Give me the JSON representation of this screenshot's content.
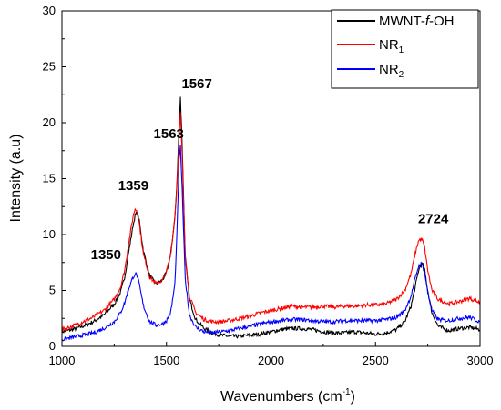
{
  "chart_data": {
    "type": "line",
    "xlabel": "Wavenumbers (cm",
    "xlabel_sup": "-1",
    "xlabel_end": ")",
    "ylabel": "Intensity (a.u)",
    "xlim": [
      1000,
      3000
    ],
    "ylim": [
      0,
      30
    ],
    "xticks": [
      1000,
      1500,
      2000,
      2500,
      3000
    ],
    "yticks": [
      0,
      5,
      10,
      15,
      20,
      25,
      30
    ],
    "grid": false,
    "legend_position": "top-right",
    "series": [
      {
        "name": "MWNT-f-OH",
        "name_parts": [
          "MWNT-",
          "f",
          "-OH"
        ],
        "color": "#000000",
        "x": [
          1000,
          1050,
          1100,
          1150,
          1200,
          1250,
          1280,
          1300,
          1320,
          1340,
          1350,
          1360,
          1370,
          1390,
          1420,
          1450,
          1480,
          1500,
          1520,
          1540,
          1550,
          1560,
          1567,
          1575,
          1590,
          1610,
          1640,
          1680,
          1720,
          1760,
          1800,
          1850,
          1900,
          1950,
          2000,
          2050,
          2100,
          2150,
          2200,
          2250,
          2300,
          2350,
          2400,
          2450,
          2500,
          2550,
          2600,
          2640,
          2670,
          2690,
          2705,
          2715,
          2724,
          2735,
          2750,
          2770,
          2800,
          2850,
          2900,
          2950,
          3000
        ],
        "y": [
          1.3,
          1.5,
          1.8,
          2.2,
          2.8,
          3.8,
          4.8,
          6.2,
          8.5,
          10.8,
          11.7,
          12.0,
          11.2,
          8.5,
          6.3,
          5.6,
          5.9,
          6.6,
          8.2,
          11.5,
          14.5,
          19.5,
          22.3,
          18.0,
          8.0,
          4.2,
          2.4,
          1.6,
          1.2,
          1.0,
          0.9,
          0.9,
          1.0,
          1.1,
          1.3,
          1.5,
          1.6,
          1.6,
          1.5,
          1.3,
          1.2,
          1.2,
          1.3,
          1.2,
          1.1,
          1.2,
          1.5,
          2.2,
          3.6,
          5.3,
          6.7,
          7.2,
          7.4,
          6.8,
          5.0,
          3.0,
          1.8,
          1.4,
          1.6,
          1.7,
          1.5
        ]
      },
      {
        "name": "NR",
        "name_sub": "1",
        "color": "#ff0000",
        "x": [
          1000,
          1050,
          1100,
          1150,
          1200,
          1250,
          1280,
          1300,
          1320,
          1340,
          1350,
          1360,
          1370,
          1390,
          1420,
          1450,
          1480,
          1500,
          1520,
          1540,
          1550,
          1560,
          1567,
          1575,
          1590,
          1610,
          1640,
          1680,
          1720,
          1760,
          1800,
          1850,
          1900,
          1950,
          2000,
          2050,
          2100,
          2150,
          2200,
          2250,
          2300,
          2350,
          2400,
          2450,
          2500,
          2550,
          2600,
          2640,
          2670,
          2690,
          2705,
          2715,
          2724,
          2735,
          2750,
          2770,
          2800,
          2850,
          2900,
          2950,
          3000
        ],
        "y": [
          1.5,
          1.8,
          2.2,
          2.6,
          3.2,
          4.2,
          5.3,
          6.8,
          9.3,
          11.6,
          12.3,
          12.1,
          11.0,
          8.2,
          6.2,
          5.6,
          5.9,
          6.7,
          8.2,
          11.5,
          14.3,
          18.5,
          20.8,
          17.0,
          8.0,
          4.5,
          3.0,
          2.4,
          2.2,
          2.2,
          2.3,
          2.5,
          2.7,
          3.0,
          3.2,
          3.4,
          3.6,
          3.5,
          3.5,
          3.6,
          3.5,
          3.6,
          3.6,
          3.7,
          3.7,
          3.8,
          4.2,
          5.0,
          6.5,
          8.3,
          9.4,
          9.6,
          9.5,
          8.8,
          6.8,
          5.0,
          4.2,
          3.8,
          4.0,
          4.3,
          3.9
        ]
      },
      {
        "name": "NR",
        "name_sub": "2",
        "color": "#0000ff",
        "x": [
          1000,
          1050,
          1100,
          1150,
          1200,
          1250,
          1280,
          1300,
          1320,
          1340,
          1350,
          1360,
          1370,
          1390,
          1420,
          1450,
          1480,
          1500,
          1520,
          1540,
          1550,
          1560,
          1567,
          1575,
          1590,
          1610,
          1640,
          1680,
          1720,
          1760,
          1800,
          1850,
          1900,
          1950,
          2000,
          2050,
          2100,
          2150,
          2200,
          2250,
          2300,
          2350,
          2400,
          2450,
          2500,
          2550,
          2600,
          2640,
          2670,
          2690,
          2705,
          2715,
          2724,
          2735,
          2750,
          2770,
          2800,
          2850,
          2900,
          2950,
          3000
        ],
        "y": [
          0.6,
          0.8,
          1.0,
          1.2,
          1.6,
          2.2,
          3.0,
          3.9,
          5.2,
          6.2,
          6.5,
          6.3,
          5.5,
          3.6,
          2.2,
          1.9,
          2.0,
          2.3,
          3.0,
          5.5,
          10.0,
          16.5,
          17.9,
          14.0,
          6.0,
          2.8,
          1.7,
          1.3,
          1.2,
          1.3,
          1.4,
          1.6,
          1.8,
          2.0,
          2.2,
          2.3,
          2.4,
          2.4,
          2.3,
          2.2,
          2.2,
          2.3,
          2.3,
          2.3,
          2.3,
          2.4,
          2.6,
          3.2,
          4.5,
          6.1,
          7.1,
          7.4,
          7.3,
          6.6,
          4.8,
          3.2,
          2.4,
          2.3,
          2.5,
          2.6,
          2.2
        ]
      }
    ],
    "annotations": [
      {
        "text": "1350",
        "x": 1350,
        "y": 7.8
      },
      {
        "text": "1359",
        "x": 1359,
        "y": 14.0
      },
      {
        "text": "1563",
        "x": 1563,
        "y": 18.6
      },
      {
        "text": "1567",
        "x": 1567,
        "y": 23.1
      },
      {
        "text": "2724",
        "x": 2724,
        "y": 11.0
      }
    ]
  }
}
